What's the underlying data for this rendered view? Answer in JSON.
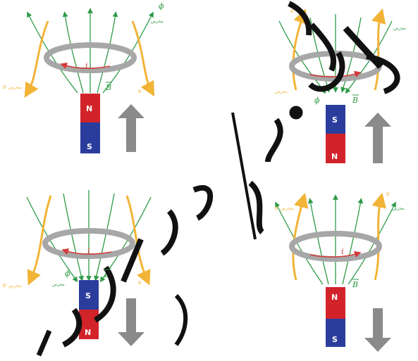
{
  "colors": {
    "field_line": "#2e9b48",
    "current": "#d43b3b",
    "induced_field": "#f2b437",
    "magnet_red": "#d2232a",
    "magnet_blue": "#2b3d9c",
    "ring": "#a7a7a7",
    "arrow": "#8a8a8a",
    "watermark": "#111111"
  },
  "labels": {
    "current": "i",
    "field": "B",
    "flux": "ϕ",
    "north": "N",
    "south": "S",
    "induced": "B'",
    "arabic_flux": "محرض",
    "arabic_induced": "B' متحرض"
  },
  "watermark": "٠٩٨٤٦ / ٠٩١٥٤٦"
}
